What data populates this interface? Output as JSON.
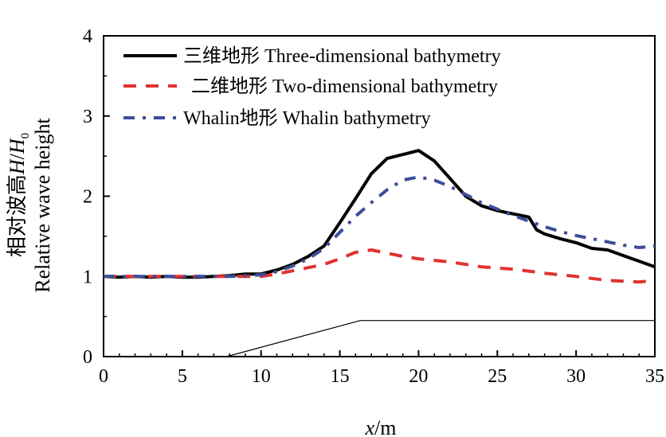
{
  "chart_data": {
    "type": "line",
    "title": "",
    "xlabel_var": "x",
    "xlabel_unit": "/m",
    "ylabel_cn": "相对波高",
    "ylabel_var": "H",
    "ylabel_sep": "/",
    "ylabel_var2": "H",
    "ylabel_sub": "0",
    "ylabel_en": "Relative wave height",
    "xlim": [
      0,
      35
    ],
    "ylim": [
      0,
      4
    ],
    "xticks": [
      "0",
      "5",
      "10",
      "15",
      "20",
      "25",
      "30",
      "35"
    ],
    "yticks": [
      "0",
      "1",
      "2",
      "3",
      "4"
    ],
    "grid": false,
    "legend_position": "top",
    "series": [
      {
        "name": "三维地形   Three-dimensional bathymetry",
        "color": "#000000",
        "style": "solid",
        "x": [
          0,
          1,
          2,
          3,
          4,
          5,
          6,
          7,
          8,
          9,
          10,
          11,
          12,
          13,
          14,
          15,
          16,
          17,
          18,
          19,
          20,
          21,
          22,
          23,
          24,
          25,
          26,
          27,
          27.5,
          28,
          29,
          30,
          31,
          32,
          33,
          34,
          35
        ],
        "y": [
          1.0,
          0.99,
          1.0,
          0.99,
          1.0,
          0.99,
          0.99,
          1.0,
          1.01,
          1.03,
          1.03,
          1.08,
          1.15,
          1.25,
          1.38,
          1.67,
          1.97,
          2.28,
          2.47,
          2.52,
          2.57,
          2.44,
          2.22,
          2.0,
          1.88,
          1.82,
          1.78,
          1.74,
          1.58,
          1.53,
          1.47,
          1.42,
          1.35,
          1.33,
          1.26,
          1.19,
          1.12
        ]
      },
      {
        "name": "二维地形     Two-dimensional bathymetry",
        "color": "#e03232",
        "style": "dashed",
        "x": [
          0,
          2,
          4,
          6,
          8,
          10,
          11,
          12,
          14,
          15,
          16,
          17,
          18,
          19,
          20,
          22,
          24,
          26,
          28,
          30,
          32,
          33,
          34,
          35
        ],
        "y": [
          1.0,
          1.0,
          1.0,
          1.0,
          1.0,
          1.0,
          1.03,
          1.07,
          1.15,
          1.22,
          1.3,
          1.33,
          1.29,
          1.25,
          1.22,
          1.18,
          1.12,
          1.09,
          1.04,
          1.0,
          0.95,
          0.94,
          0.93,
          0.95
        ]
      },
      {
        "name": "Whalin地形   Whalin bathymetry",
        "color": "#3d4d9a",
        "style": "dashdot",
        "x": [
          0,
          2,
          4,
          6,
          8,
          10,
          11,
          12,
          13,
          14,
          15,
          16,
          17,
          18,
          19,
          20,
          21,
          22,
          24,
          26,
          28,
          29,
          30,
          31,
          32,
          33,
          34,
          35
        ],
        "y": [
          1.0,
          1.0,
          1.0,
          1.0,
          1.0,
          1.02,
          1.06,
          1.13,
          1.22,
          1.35,
          1.55,
          1.75,
          1.92,
          2.08,
          2.2,
          2.24,
          2.2,
          2.12,
          1.92,
          1.76,
          1.62,
          1.56,
          1.51,
          1.47,
          1.43,
          1.39,
          1.36,
          1.38
        ]
      },
      {
        "name": "",
        "color": "#000000",
        "style": "thin",
        "x": [
          7.8,
          16.3,
          35
        ],
        "y": [
          0.0,
          0.45,
          0.45
        ]
      }
    ]
  }
}
